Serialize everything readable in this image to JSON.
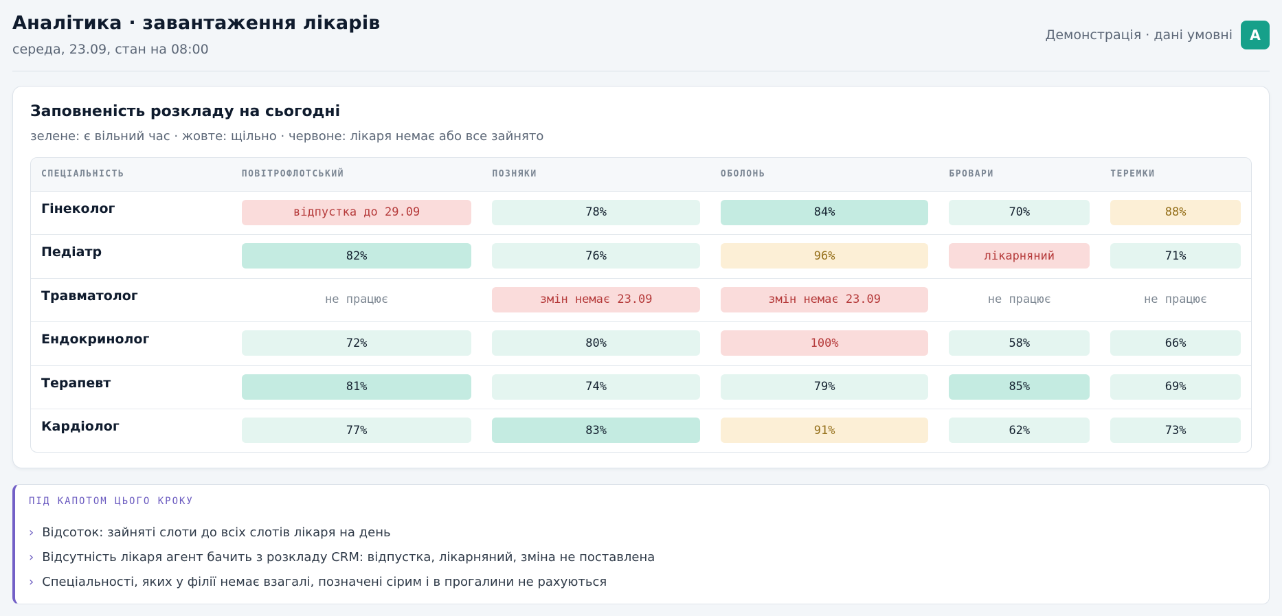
{
  "header": {
    "title": "Аналітика · завантаження лікарів",
    "subtitle": "середа, 23.09, стан на 08:00",
    "demo_text": "Демонстрація · дані умовні",
    "avatar_letter": "A"
  },
  "card": {
    "title": "Заповненість розкладу на сьогодні",
    "subtitle": "зелене: є вільний час · жовте: щільно · червоне: лікаря немає або все зайнято"
  },
  "table": {
    "headers": [
      "СПЕЦІАЛЬНІСТЬ",
      "ПОВІТРОФЛОТСЬКИЙ",
      "ПОЗНЯКИ",
      "ОБОЛОНЬ",
      "БРОВАРИ",
      "ТЕРЕМКИ"
    ],
    "rows": [
      {
        "specialty": "Гінеколог",
        "cells": [
          "відпустка до 29.09",
          "78%",
          "84%",
          "70%",
          "88%"
        ]
      },
      {
        "specialty": "Педіатр",
        "cells": [
          "82%",
          "76%",
          "96%",
          "лікарняний",
          "71%"
        ]
      },
      {
        "specialty": "Травматолог",
        "cells": [
          "не працює",
          "змін немає 23.09",
          "змін немає 23.09",
          "не працює",
          "не працює"
        ]
      },
      {
        "specialty": "Ендокринолог",
        "cells": [
          "72%",
          "80%",
          "100%",
          "58%",
          "66%"
        ]
      },
      {
        "specialty": "Терапевт",
        "cells": [
          "81%",
          "74%",
          "79%",
          "85%",
          "69%"
        ]
      },
      {
        "specialty": "Кардіолог",
        "cells": [
          "77%",
          "83%",
          "91%",
          "62%",
          "73%"
        ]
      }
    ],
    "statuses": [
      [
        "bad",
        "light",
        "mid",
        "light",
        "warn"
      ],
      [
        "mid",
        "light",
        "warn",
        "bad",
        "light"
      ],
      [
        "off",
        "bad",
        "bad",
        "off",
        "off"
      ],
      [
        "light",
        "light",
        "bad",
        "light",
        "light"
      ],
      [
        "mid",
        "light",
        "light",
        "mid",
        "light"
      ],
      [
        "light",
        "mid",
        "warn",
        "light",
        "light"
      ]
    ]
  },
  "note": {
    "title": "ПІД КАПОТОМ ЦЬОГО КРОКУ",
    "items": [
      "Відсоток: зайняті слоти до всіх слотів лікаря на день",
      "Відсутність лікаря агент бачить з розкладу CRM: відпустка, лікарняний, зміна не поставлена",
      "Спеціальності, яких у філії немає взагалі, позначені сірим і в прогалини не рахуються"
    ],
    "bullet": "›"
  },
  "colors": {
    "accent_green": "#16a08a",
    "free_light": "#e4f5f0",
    "free_strong": "#c4ebe1",
    "dense": "#fcefd6",
    "unavailable": "#fadcdb",
    "note_accent": "#7360c7"
  }
}
